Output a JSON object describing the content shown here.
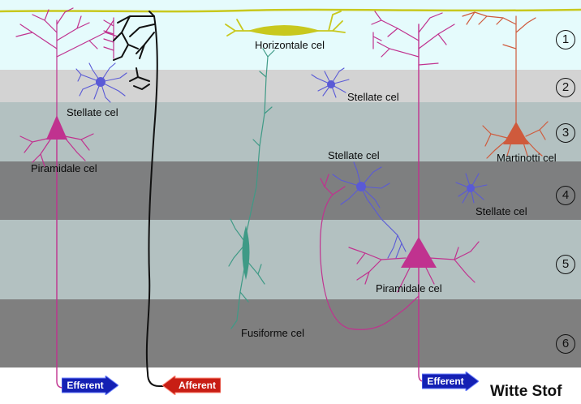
{
  "layers": [
    "1",
    "2",
    "3",
    "4",
    "5",
    "6"
  ],
  "labels": {
    "horizontale": "Horizontale cel",
    "stellate_l2_left": "Stellate cel",
    "stellate_l2_right": "Stellate cel",
    "piramidale_left": "Piramidale cel",
    "stellate_l4_mid": "Stellate cel",
    "martinotti": "Martinotti cel",
    "stellate_l4_right": "Stellate cel",
    "fusiforme": "Fusiforme cel",
    "piramidale_right": "Piramidale cel",
    "witte_stof": "Witte Stof"
  },
  "arrows": {
    "efferent_left": "Efferent",
    "afferent": "Afferent",
    "efferent_right": "Efferent"
  },
  "colors": {
    "pyramidal": "#c0328f",
    "stellate": "#5a5ad6",
    "afferent_fiber": "#111111",
    "horizontal": "#c8c81e",
    "fusiform": "#3f9a86",
    "martinotti": "#cf5a3c",
    "efferent_arrow": "#1420b4",
    "afferent_arrow": "#c81e14"
  }
}
